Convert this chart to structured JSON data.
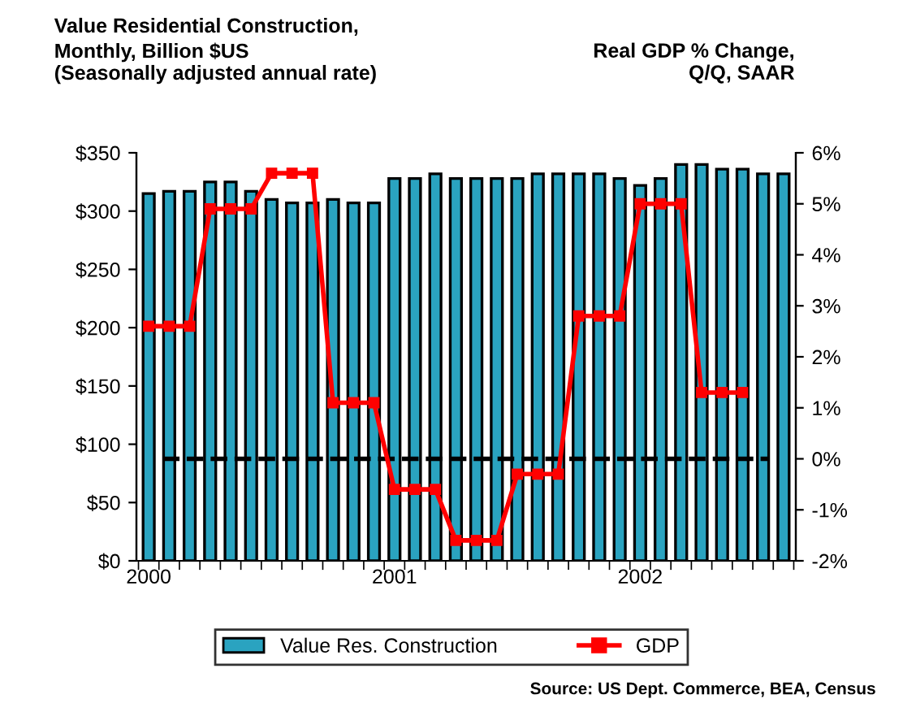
{
  "chart_data": {
    "type": "bar",
    "title": "Value Residential Construction,",
    "ylabel": "Monthly, Billion $US\n(Seasonally adjusted annual rate)",
    "y2label": "Real GDP % Change,\nQ/Q, SAAR",
    "categories": [
      "2000",
      null,
      null,
      null,
      null,
      null,
      null,
      null,
      null,
      null,
      null,
      null,
      "2001",
      null,
      null,
      null,
      null,
      null,
      null,
      null,
      null,
      null,
      null,
      null,
      "2002",
      null,
      null,
      null,
      null,
      null,
      null,
      null
    ],
    "series": [
      {
        "name": "Value Res. Construction",
        "color": "#2aa3c0",
        "values": [
          315,
          317,
          317,
          325,
          325,
          317,
          310,
          307,
          307,
          310,
          307,
          307,
          328,
          328,
          332,
          328,
          328,
          328,
          328,
          332,
          332,
          332,
          332,
          328,
          322,
          328,
          340,
          340,
          336,
          336,
          332,
          332
        ]
      },
      {
        "name": "GDP",
        "type": "line",
        "axis": "y2",
        "color": "#ff0000",
        "marker": "square",
        "line_style": "solid",
        "values": [
          2.6,
          2.6,
          2.6,
          4.9,
          4.9,
          4.9,
          5.6,
          5.6,
          5.6,
          1.1,
          1.1,
          1.1,
          -0.6,
          -0.6,
          -0.6,
          -1.6,
          -1.6,
          -1.6,
          -0.3,
          -0.3,
          -0.3,
          2.8,
          2.8,
          2.8,
          5.0,
          5.0,
          5.0,
          1.3,
          1.3,
          1.3,
          null,
          null
        ]
      }
    ],
    "ylim": [
      0,
      350
    ],
    "yticks": [
      {
        "value": 0,
        "label": "$0"
      },
      {
        "value": 50,
        "label": "$50"
      },
      {
        "value": 100,
        "label": "$100"
      },
      {
        "value": 150,
        "label": "$150"
      },
      {
        "value": 200,
        "label": "$200"
      },
      {
        "value": 250,
        "label": "$250"
      },
      {
        "value": 300,
        "label": "$300"
      },
      {
        "value": 350,
        "label": "$350"
      }
    ],
    "y2lim": [
      -2,
      6
    ],
    "y2ticks": [
      {
        "value": -2,
        "label": "-2%"
      },
      {
        "value": -1,
        "label": "-1%"
      },
      {
        "value": 0,
        "label": "0%"
      },
      {
        "value": 1,
        "label": "1%"
      },
      {
        "value": 2,
        "label": "2%"
      },
      {
        "value": 3,
        "label": "3%"
      },
      {
        "value": 4,
        "label": "4%"
      },
      {
        "value": 5,
        "label": "5%"
      },
      {
        "value": 6,
        "label": "6%"
      }
    ],
    "ref_lines": [
      {
        "axis": "y2",
        "value": 0,
        "color": "#000000",
        "line_style": "dashed"
      }
    ],
    "annotations": [
      "Source: US Dept. Commerce, BEA, Census"
    ],
    "legend": "bottom",
    "grid": false
  }
}
